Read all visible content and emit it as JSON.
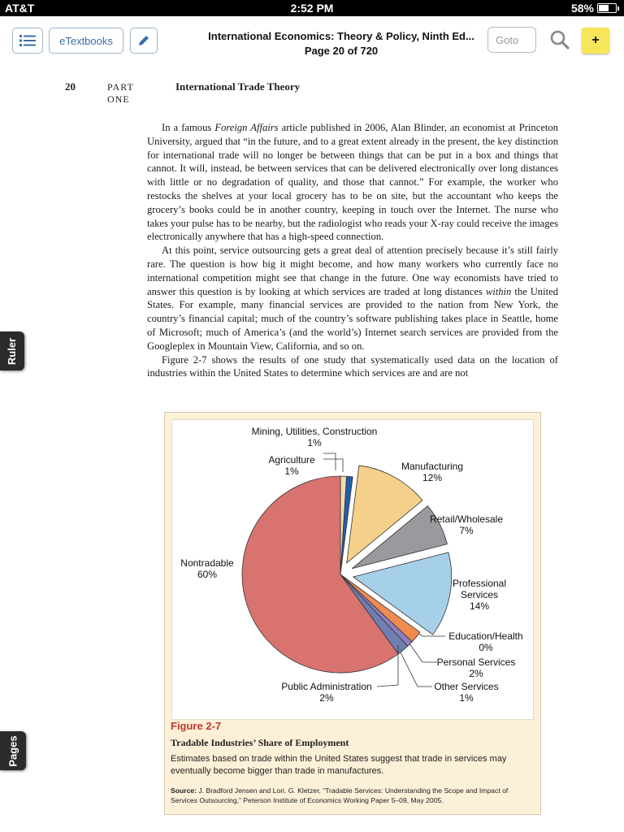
{
  "status": {
    "carrier": "AT&T",
    "time": "2:52 PM",
    "battery": "58%",
    "battery_level": 0.58
  },
  "toolbar": {
    "etextbooks_label": "eTextbooks",
    "title_line1": "International Economics: Theory & Policy, Ninth Ed...",
    "title_line2": "Page 20 of 720",
    "goto_placeholder": "Goto",
    "note_label": "+"
  },
  "page": {
    "number": "20",
    "part": "PART ONE",
    "section": "International Trade Theory",
    "paragraphs": [
      [
        "In a famous ",
        {
          "i": "Foreign Affairs"
        },
        " article published in 2006, Alan Blinder, an economist at Princeton University, argued that “in the future, and to a great extent already in the present, the key distinction for international trade will no longer be between things that can be put in a box and things that cannot. It will, instead, be between services that can be delivered electronically over long distances with little or no degradation of quality, and those that cannot.” For example, the worker who restocks the shelves at your local grocery has to be on site, but the accountant who keeps the grocery’s books could be in another country, keeping in touch over the Internet. The nurse who takes your pulse has to be nearby, but the radiologist who reads your X-ray could receive the images electronically anywhere that has a high-speed connection."
      ],
      [
        "At this point, service outsourcing gets a great deal of attention precisely because it’s still fairly rare. The question is how big it might become, and how many workers who currently face no international competition might see that change in the future. One way economists have tried to answer this question is by looking at which services are traded at long distances ",
        {
          "i": "within"
        },
        " the United States. For example, many financial services are provided to the nation from New York, the country’s financial capital; much of the country’s software publishing takes place in Seattle, home of Microsoft; much of America’s (and the world’s) Internet search services are provided from the Googleplex in Mountain View, California, and so on."
      ],
      [
        "Figure 2-7 shows the results of one study that systematically used data on the location of industries within the United States to determine which services are and are not"
      ]
    ]
  },
  "side_tabs": {
    "ruler": "Ruler",
    "pages": "Pages"
  },
  "figure": {
    "label": "Figure 2-7",
    "title": "Tradable Industries’ Share of Employment",
    "caption": "Estimates based on trade within the United States suggest that trade in services may eventually become bigger than trade in manufactures.",
    "source_lead": "Source:",
    "source_rest": " J. Bradford Jensen and Lori. G. Kletzer, “Tradable Services: Understanding the Scope and Impact of Services Outsourcing,” Peterson Institute of Economics Working Paper 5–09, May 2005."
  },
  "chart_data": {
    "type": "pie",
    "title": "Tradable Industries’ Share of Employment",
    "slices": [
      {
        "name": "Mining, Utilities, Construction",
        "value": 1,
        "label": "1%",
        "color": "#f0d9b5"
      },
      {
        "name": "Agriculture",
        "value": 1,
        "label": "1%",
        "color": "#1f5fa8"
      },
      {
        "name": "Manufacturing",
        "value": 12,
        "label": "12%",
        "color": "#f5d08a",
        "exploded": true
      },
      {
        "name": "Retail/Wholesale",
        "value": 7,
        "label": "7%",
        "color": "#9a9a9e",
        "exploded": true
      },
      {
        "name": "Professional Services",
        "value": 14,
        "label": "14%",
        "color": "#a6d0e8",
        "exploded": true
      },
      {
        "name": "Education/Health",
        "value": 0,
        "label": "0%",
        "color": "#cccccc"
      },
      {
        "name": "Personal Services",
        "value": 2,
        "label": "2%",
        "color": "#f08a50"
      },
      {
        "name": "Other Services",
        "value": 1,
        "label": "1%",
        "color": "#8c7fc0"
      },
      {
        "name": "Public Administration",
        "value": 2,
        "label": "2%",
        "color": "#6f7fb0"
      },
      {
        "name": "Nontradable",
        "value": 60,
        "label": "60%",
        "color": "#d9736f"
      }
    ]
  }
}
